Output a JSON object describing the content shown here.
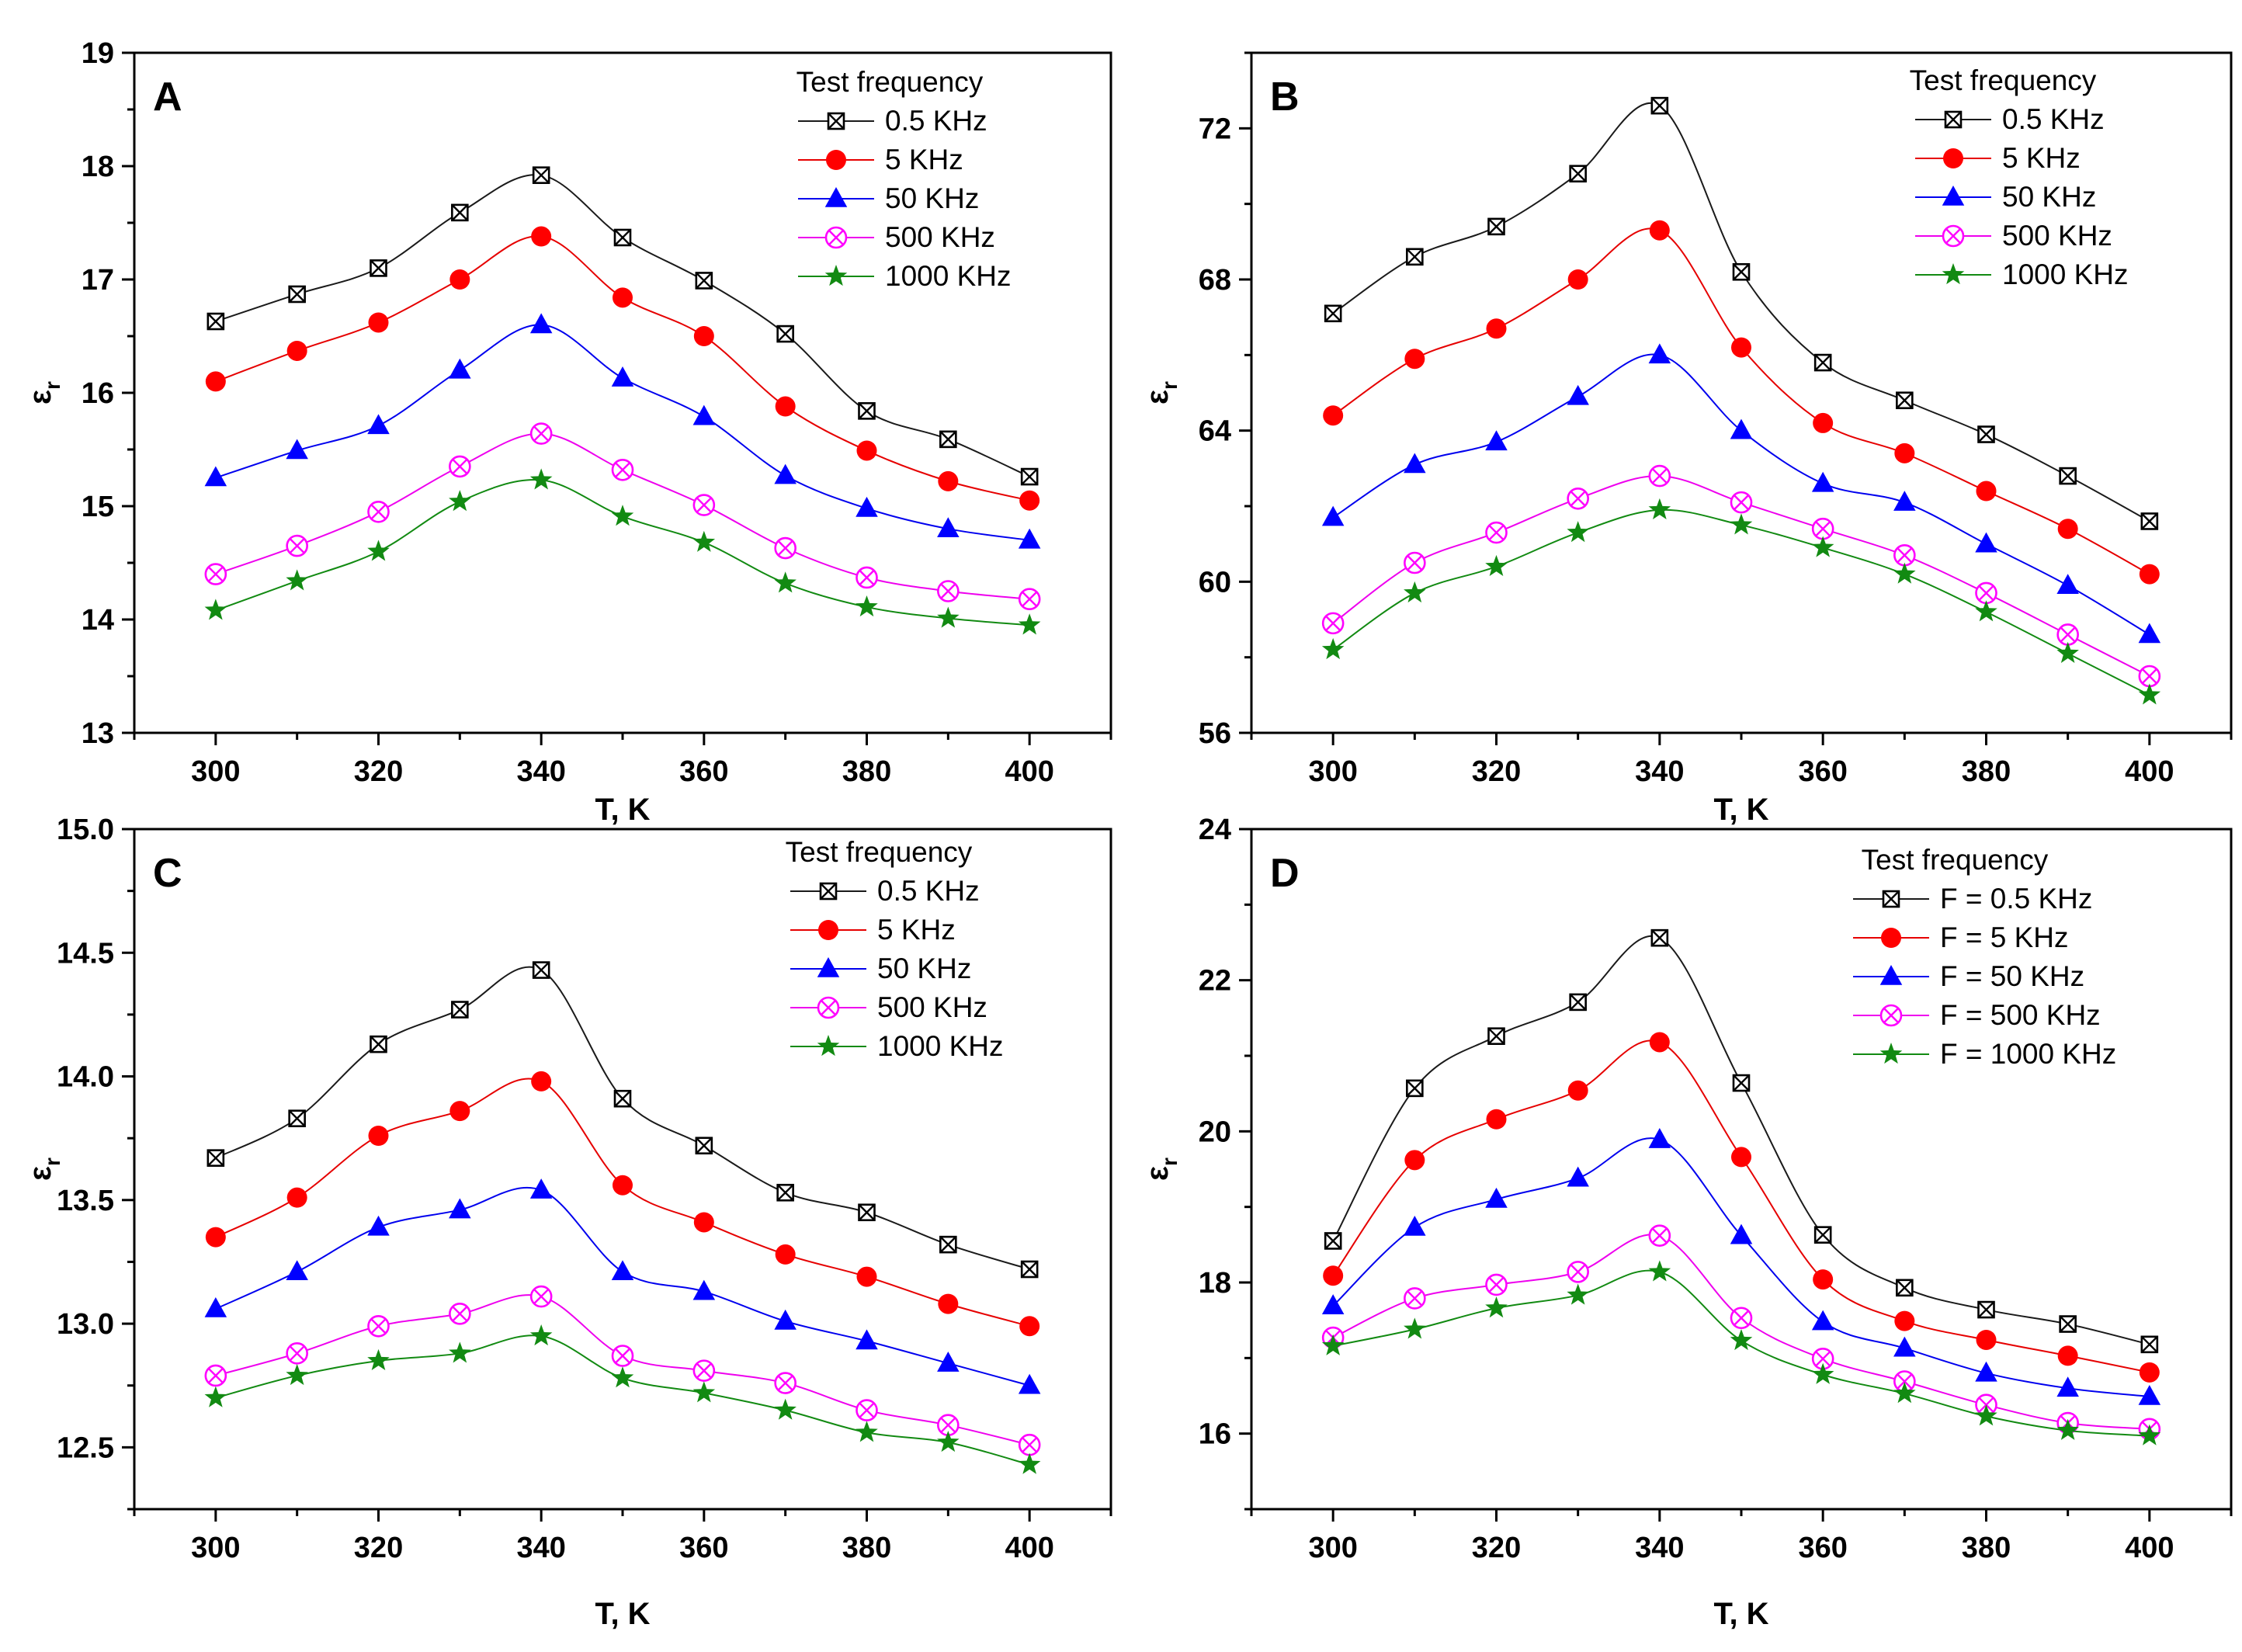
{
  "chart_data": [
    {
      "type": "line",
      "panel_label": "A",
      "xlabel": "T, K",
      "ylabel": "ε",
      "ylabel_subscript": "r",
      "xlim": [
        290,
        410
      ],
      "ylim": [
        13,
        19
      ],
      "xticks": [
        300,
        320,
        340,
        360,
        380,
        400
      ],
      "yticks": [
        13,
        14,
        15,
        16,
        17,
        18,
        19
      ],
      "ytick_labels": [
        "13",
        "14",
        "15",
        "16",
        "17",
        "18",
        "19"
      ],
      "grid": false,
      "legend_position": "top-right",
      "legend_title": "Test frequency",
      "x": [
        300,
        310,
        320,
        330,
        340,
        350,
        360,
        370,
        380,
        390,
        400
      ],
      "series": [
        {
          "name": "0.5 KHz",
          "values": [
            16.63,
            16.87,
            17.1,
            17.59,
            17.92,
            17.37,
            16.99,
            16.52,
            15.84,
            15.59,
            15.26
          ]
        },
        {
          "name": "5 KHz",
          "values": [
            16.1,
            16.37,
            16.62,
            17.0,
            17.38,
            16.84,
            16.5,
            15.88,
            15.49,
            15.22,
            15.05
          ]
        },
        {
          "name": "50 KHz",
          "values": [
            15.25,
            15.49,
            15.71,
            16.2,
            16.6,
            16.13,
            15.79,
            15.27,
            14.98,
            14.8,
            14.7
          ]
        },
        {
          "name": "500 KHz",
          "values": [
            14.4,
            14.65,
            14.95,
            15.35,
            15.64,
            15.32,
            15.01,
            14.63,
            14.37,
            14.25,
            14.18
          ]
        },
        {
          "name": "1000 KHz",
          "values": [
            14.08,
            14.34,
            14.6,
            15.04,
            15.23,
            14.91,
            14.68,
            14.32,
            14.11,
            14.01,
            13.95
          ]
        }
      ]
    },
    {
      "type": "line",
      "panel_label": "B",
      "xlabel": "T, K",
      "ylabel": "ε",
      "ylabel_subscript": "r",
      "xlim": [
        290,
        410
      ],
      "ylim": [
        56,
        74
      ],
      "xticks": [
        300,
        320,
        340,
        360,
        380,
        400
      ],
      "yticks": [
        56,
        60,
        64,
        68,
        72
      ],
      "ytick_labels": [
        "56",
        "60",
        "64",
        "68",
        "72"
      ],
      "grid": false,
      "legend_position": "top-right",
      "legend_title": "Test frequency",
      "x": [
        300,
        310,
        320,
        330,
        340,
        350,
        360,
        370,
        380,
        390,
        400
      ],
      "series": [
        {
          "name": "0.5 KHz",
          "values": [
            67.1,
            68.6,
            69.4,
            70.8,
            72.6,
            68.2,
            65.8,
            64.8,
            63.9,
            62.8,
            61.6
          ]
        },
        {
          "name": "5 KHz",
          "values": [
            64.4,
            65.9,
            66.7,
            68.0,
            69.3,
            66.2,
            64.2,
            63.4,
            62.4,
            61.4,
            60.2
          ]
        },
        {
          "name": "50 KHz",
          "values": [
            61.7,
            63.1,
            63.7,
            64.9,
            66.0,
            64.0,
            62.6,
            62.1,
            61.0,
            59.9,
            58.6
          ]
        },
        {
          "name": "500 KHz",
          "values": [
            58.9,
            60.5,
            61.3,
            62.2,
            62.8,
            62.1,
            61.4,
            60.7,
            59.7,
            58.6,
            57.5
          ]
        },
        {
          "name": "1000 KHz",
          "values": [
            58.2,
            59.7,
            60.4,
            61.3,
            61.9,
            61.5,
            60.9,
            60.2,
            59.2,
            58.1,
            57.0
          ]
        }
      ]
    },
    {
      "type": "line",
      "panel_label": "C",
      "xlabel": "T, K",
      "ylabel": "ε",
      "ylabel_subscript": "r",
      "xlim": [
        290,
        410
      ],
      "ylim": [
        12.25,
        15.0
      ],
      "xticks": [
        300,
        320,
        340,
        360,
        380,
        400
      ],
      "yticks": [
        12.5,
        13.0,
        13.5,
        14.0,
        14.5,
        15.0
      ],
      "ytick_labels": [
        "12.5",
        "13.0",
        "13.5",
        "14.0",
        "14.5",
        "15.0"
      ],
      "grid": false,
      "legend_position": "top-right",
      "legend_title": "Test frequency",
      "x": [
        300,
        310,
        320,
        330,
        340,
        350,
        360,
        370,
        380,
        390,
        400
      ],
      "series": [
        {
          "name": "0.5 KHz",
          "values": [
            13.67,
            13.83,
            14.13,
            14.27,
            14.43,
            13.91,
            13.72,
            13.53,
            13.45,
            13.32,
            13.22
          ]
        },
        {
          "name": "5 KHz",
          "values": [
            13.35,
            13.51,
            13.76,
            13.86,
            13.98,
            13.56,
            13.41,
            13.28,
            13.19,
            13.08,
            12.99
          ]
        },
        {
          "name": "50 KHz",
          "values": [
            13.06,
            13.21,
            13.39,
            13.46,
            13.54,
            13.21,
            13.13,
            13.01,
            12.93,
            12.84,
            12.75
          ]
        },
        {
          "name": "500 KHz",
          "values": [
            12.79,
            12.88,
            12.99,
            13.04,
            13.11,
            12.87,
            12.81,
            12.76,
            12.65,
            12.59,
            12.51
          ]
        },
        {
          "name": "1000 KHz",
          "values": [
            12.7,
            12.79,
            12.85,
            12.88,
            12.95,
            12.78,
            12.72,
            12.65,
            12.56,
            12.52,
            12.43
          ]
        }
      ]
    },
    {
      "type": "line",
      "panel_label": "D",
      "xlabel": "T, K",
      "ylabel": "ε",
      "ylabel_subscript": "r",
      "xlim": [
        290,
        410
      ],
      "ylim": [
        15,
        24
      ],
      "xticks": [
        300,
        320,
        340,
        360,
        380,
        400
      ],
      "yticks": [
        16,
        18,
        20,
        22,
        24
      ],
      "ytick_labels": [
        "16",
        "18",
        "20",
        "22",
        "24"
      ],
      "grid": false,
      "legend_position": "top-right",
      "legend_title": "Test frequency",
      "x": [
        300,
        310,
        320,
        330,
        340,
        350,
        360,
        370,
        380,
        390,
        400
      ],
      "series": [
        {
          "name": "F = 0.5 KHz",
          "values": [
            18.55,
            20.57,
            21.26,
            21.71,
            22.56,
            20.64,
            18.63,
            17.93,
            17.64,
            17.45,
            17.18
          ]
        },
        {
          "name": "F = 5 KHz",
          "values": [
            18.09,
            19.62,
            20.16,
            20.54,
            21.18,
            19.66,
            18.04,
            17.49,
            17.24,
            17.03,
            16.81
          ]
        },
        {
          "name": "F = 50 KHz",
          "values": [
            17.69,
            18.73,
            19.1,
            19.38,
            19.89,
            18.62,
            17.48,
            17.13,
            16.8,
            16.6,
            16.49
          ]
        },
        {
          "name": "F = 500 KHz",
          "values": [
            17.27,
            17.79,
            17.97,
            18.14,
            18.62,
            17.53,
            16.99,
            16.69,
            16.38,
            16.14,
            16.06
          ]
        },
        {
          "name": "F = 1000 KHz",
          "values": [
            17.16,
            17.38,
            17.66,
            17.83,
            18.14,
            17.23,
            16.78,
            16.53,
            16.23,
            16.04,
            15.97
          ]
        }
      ]
    }
  ],
  "series_styles": [
    {
      "line_color": "#1a1a1a",
      "marker": "boxed-x",
      "marker_color": "#000000"
    },
    {
      "line_color": "#e60000",
      "marker": "circle",
      "marker_color": "#ff0000"
    },
    {
      "line_color": "#0000ee",
      "marker": "triangle",
      "marker_color": "#0000ff"
    },
    {
      "line_color": "#ee00ee",
      "marker": "circled-x",
      "marker_color": "#ff00ff"
    },
    {
      "line_color": "#128a12",
      "marker": "star",
      "marker_color": "#128a12"
    }
  ]
}
